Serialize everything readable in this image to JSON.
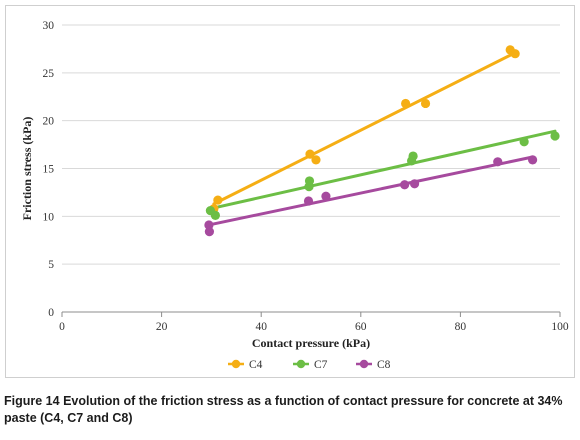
{
  "chart_data": {
    "type": "scatter",
    "xlabel": "Contact pressure (kPa)",
    "ylabel": "Friction stress (kPa)",
    "xlim": [
      0,
      100
    ],
    "ylim": [
      0,
      30
    ],
    "xticks": [
      0,
      20,
      40,
      60,
      80,
      100
    ],
    "yticks": [
      0,
      5,
      10,
      15,
      20,
      25,
      30
    ],
    "grid": "horizontal",
    "legend_position": "bottom",
    "series": [
      {
        "name": "C4",
        "color": "#f5ae14",
        "points": [
          [
            30.5,
            10.8
          ],
          [
            31.3,
            11.7
          ],
          [
            49.8,
            16.5
          ],
          [
            51.0,
            15.9
          ],
          [
            69.0,
            21.8
          ],
          [
            73.0,
            21.8
          ],
          [
            90.0,
            27.4
          ],
          [
            91.0,
            27.0
          ]
        ],
        "trendline": [
          [
            30.5,
            11.3
          ],
          [
            91.0,
            27.1
          ]
        ]
      },
      {
        "name": "C7",
        "color": "#6cbe45",
        "points": [
          [
            29.8,
            10.6
          ],
          [
            30.8,
            10.1
          ],
          [
            49.7,
            13.7
          ],
          [
            49.6,
            13.1
          ],
          [
            70.5,
            16.3
          ],
          [
            70.2,
            15.8
          ],
          [
            92.8,
            17.8
          ],
          [
            99.0,
            18.4
          ]
        ],
        "trendline": [
          [
            29.8,
            10.8
          ],
          [
            99.0,
            18.9
          ]
        ]
      },
      {
        "name": "C8",
        "color": "#a64a9e",
        "points": [
          [
            29.5,
            9.1
          ],
          [
            29.6,
            8.4
          ],
          [
            49.5,
            11.6
          ],
          [
            53.0,
            12.1
          ],
          [
            68.8,
            13.3
          ],
          [
            70.8,
            13.4
          ],
          [
            87.5,
            15.7
          ],
          [
            94.5,
            15.9
          ]
        ],
        "trendline": [
          [
            29.5,
            9.1
          ],
          [
            94.5,
            16.2
          ]
        ]
      }
    ]
  },
  "caption": {
    "label": "Figure 14",
    "text": "Evolution of the friction stress as a function of contact pressure for concrete at 34% paste (C4, C7 and C8)"
  }
}
